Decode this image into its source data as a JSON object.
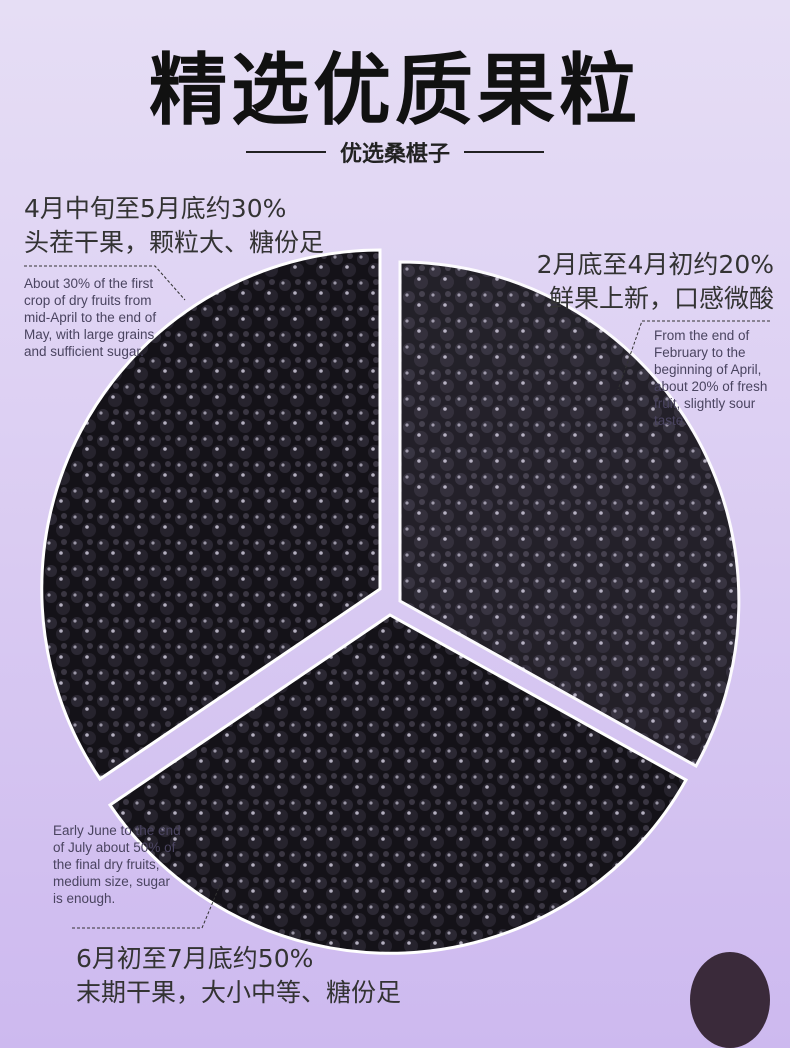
{
  "title": "精选优质果粒",
  "subtitle": "优选桑椹子",
  "segments": [
    {
      "heading": "4月中旬至5月底约30%",
      "subheading": "头茬干果，颗粒大、糖份足",
      "note": "About 30% of the first crop of dry fruits from mid-April to the end of May, with large grains and sufficient sugar.",
      "percent": 30
    },
    {
      "heading": "2月底至4月初约20%",
      "subheading": "鲜果上新，口感微酸",
      "note": "From the end of February to the beginning of April, about 20% of fresh fruit, slightly sour taste.",
      "percent": 20
    },
    {
      "heading": "6月初至7月底约50%",
      "subheading": "末期干果，大小中等、糖份足",
      "note": "Early June to the end of July about 50% of the final dry fruits, medium size, sugar is enough.",
      "percent": 50
    }
  ]
}
